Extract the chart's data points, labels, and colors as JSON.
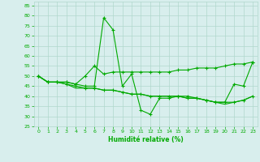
{
  "xlabel": "Humidité relative (%)",
  "ylabel": "",
  "background_color": "#d8eeed",
  "grid_color": "#b0d8cc",
  "line_color": "#00aa00",
  "xlim": [
    -0.5,
    23.5
  ],
  "ylim": [
    25,
    87
  ],
  "xticks": [
    0,
    1,
    2,
    3,
    4,
    5,
    6,
    7,
    8,
    9,
    10,
    11,
    12,
    13,
    14,
    15,
    16,
    17,
    18,
    19,
    20,
    21,
    22,
    23
  ],
  "yticks": [
    25,
    30,
    35,
    40,
    45,
    50,
    55,
    60,
    65,
    70,
    75,
    80,
    85
  ],
  "line1_x": [
    0,
    1,
    2,
    3,
    4,
    5,
    6,
    7,
    8,
    9,
    10,
    11,
    12,
    13,
    14,
    15,
    16,
    17,
    18,
    19,
    20,
    21,
    22,
    23
  ],
  "line1_y": [
    50,
    47,
    47,
    47,
    46,
    45,
    45,
    79,
    73,
    45,
    51,
    33,
    31,
    39,
    39,
    40,
    40,
    39,
    38,
    37,
    37,
    46,
    45,
    57
  ],
  "line2_x": [
    0,
    1,
    2,
    3,
    4,
    5,
    6,
    7,
    8,
    9,
    10,
    11,
    12,
    13,
    14,
    15,
    16,
    17,
    18,
    19,
    20,
    21,
    22,
    23
  ],
  "line2_y": [
    50,
    47,
    47,
    47,
    46,
    50,
    55,
    51,
    52,
    52,
    52,
    52,
    52,
    52,
    52,
    53,
    53,
    54,
    54,
    54,
    55,
    56,
    56,
    57
  ],
  "line3_x": [
    0,
    1,
    2,
    3,
    4,
    5,
    6,
    7,
    8,
    9,
    10,
    11,
    12,
    13,
    14,
    15,
    16,
    17,
    18,
    19,
    20,
    21,
    22,
    23
  ],
  "line3_y": [
    50,
    47,
    47,
    46,
    45,
    44,
    44,
    43,
    43,
    42,
    41,
    41,
    40,
    40,
    40,
    40,
    39,
    39,
    38,
    37,
    37,
    37,
    38,
    40
  ],
  "line4_x": [
    0,
    1,
    2,
    3,
    4,
    5,
    6,
    7,
    8,
    9,
    10,
    11,
    12,
    13,
    14,
    15,
    16,
    17,
    18,
    19,
    20,
    21,
    22,
    23
  ],
  "line4_y": [
    50,
    47,
    47,
    46,
    44,
    44,
    44,
    43,
    43,
    42,
    41,
    41,
    40,
    40,
    40,
    40,
    39,
    39,
    38,
    37,
    36,
    37,
    38,
    40
  ]
}
